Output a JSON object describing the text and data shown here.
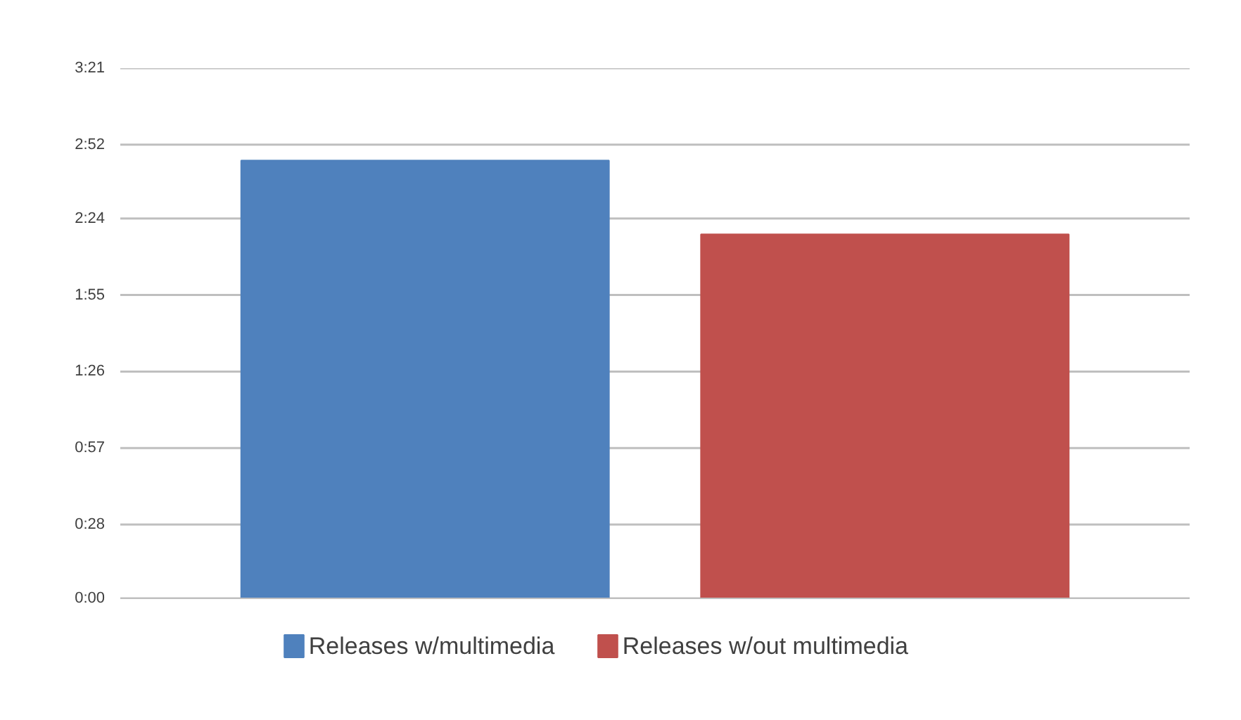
{
  "chart_data": {
    "type": "bar",
    "categories": [
      null
    ],
    "series": [
      {
        "name": "Releases w/multimedia",
        "color": "#4f81bd",
        "values": [
          166
        ]
      },
      {
        "name": "Releases w/out multimedia",
        "color": "#c0504d",
        "values": [
          138
        ]
      }
    ],
    "ylim": [
      0,
      201
    ],
    "yticks": [
      {
        "value": 0,
        "label": "0:00"
      },
      {
        "value": 28,
        "label": "0:28"
      },
      {
        "value": 57,
        "label": "0:57"
      },
      {
        "value": 86,
        "label": "1:26"
      },
      {
        "value": 115,
        "label": "1:55"
      },
      {
        "value": 144,
        "label": "2:24"
      },
      {
        "value": 172,
        "label": "2:52"
      },
      {
        "value": 201,
        "label": "3:21"
      }
    ],
    "grid": "y",
    "legend": "bottom"
  }
}
